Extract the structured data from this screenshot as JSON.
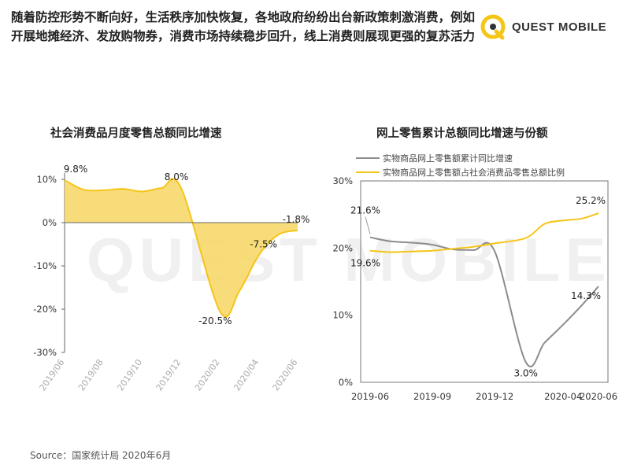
{
  "headline": "随着防控形势不断向好，生活秩序加快恢复，各地政府纷纷出台新政策刺激消费，例如开展地摊经济、发放购物券，消费市场持续稳步回升，线上消费则展现更强的复苏活力",
  "brand": {
    "name": "QUEST MOBILE",
    "accent": "#f5c518"
  },
  "source": "Source：国家统计局 2020年6月",
  "chart_data": [
    {
      "type": "area",
      "title": "社会消费品月度零售总额同比增速",
      "xlabel": "",
      "ylabel": "",
      "ylim": [
        -30,
        10
      ],
      "yticks": [
        "10%",
        "0%",
        "-10%",
        "-20%",
        "-30%"
      ],
      "xticks": [
        "2019/06",
        "2019/08",
        "2019/10",
        "2019/12",
        "2020/02",
        "2020/04",
        "2020/06"
      ],
      "x": [
        "2019/06",
        "2019/07",
        "2019/08",
        "2019/09",
        "2019/10",
        "2019/11",
        "2019/12",
        "2020/01",
        "2020/02",
        "2020/03",
        "2020/04",
        "2020/05",
        "2020/06"
      ],
      "values": [
        9.8,
        7.6,
        7.5,
        7.8,
        7.2,
        8.0,
        8.0,
        null,
        -20.5,
        -15.8,
        -7.5,
        -2.8,
        -1.8
      ],
      "annotations": [
        {
          "x": "2019/06",
          "label": "9.8%"
        },
        {
          "x": "2019/12",
          "label": "8.0%"
        },
        {
          "x": "2020/02",
          "label": "-20.5%"
        },
        {
          "x": "2020/04",
          "label": "-7.5%"
        },
        {
          "x": "2020/06",
          "label": "-1.8%"
        }
      ],
      "color": "#f5c518",
      "fill": "#f7d86a",
      "grid": false
    },
    {
      "type": "line",
      "title": "网上零售累计总额同比增速与份额",
      "xlabel": "",
      "ylabel": "",
      "ylim": [
        0,
        30
      ],
      "yticks": [
        "30%",
        "20%",
        "10%",
        "0%"
      ],
      "xticks": [
        "2019-06",
        "2019-09",
        "2019-12",
        "2020-04",
        "2020-06"
      ],
      "x": [
        "2019-06",
        "2019-07",
        "2019-08",
        "2019-09",
        "2019-10",
        "2019-11",
        "2019-12",
        "2020-02",
        "2020-03",
        "2020-04",
        "2020-05",
        "2020-06"
      ],
      "legend_position": "top-left",
      "series": [
        {
          "name": "实物商品网上零售额累计同比增速",
          "color": "#8c8c8c",
          "values": [
            21.6,
            21.0,
            20.8,
            20.5,
            19.8,
            19.7,
            19.5,
            3.0,
            5.9,
            8.6,
            11.5,
            14.3
          ],
          "annotations": [
            {
              "x": "2019-06",
              "label": "21.6%"
            },
            {
              "x": "2020-02",
              "label": "3.0%"
            },
            {
              "x": "2020-06",
              "label": "14.3%"
            }
          ]
        },
        {
          "name": "实物商品网上零售额占社会消费品零售总额比例",
          "color": "#f5c518",
          "values": [
            19.6,
            19.4,
            19.5,
            19.6,
            19.9,
            20.2,
            20.7,
            21.5,
            23.6,
            24.1,
            24.4,
            25.2
          ],
          "annotations": [
            {
              "x": "2019-06",
              "label": "19.6%"
            },
            {
              "x": "2020-06",
              "label": "25.2%"
            }
          ]
        }
      ],
      "grid": false
    }
  ]
}
